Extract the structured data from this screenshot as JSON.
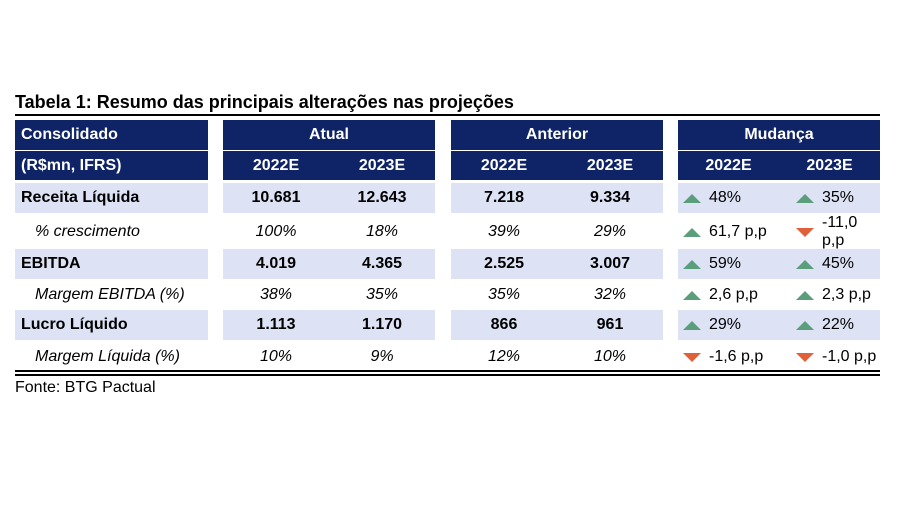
{
  "title": "Tabela 1: Resumo das principais alterações nas projeções",
  "header": {
    "row1_label": "Consolidado",
    "row2_label": "(R$mn, IFRS)",
    "groups": [
      "Atual",
      "Anterior",
      "Mudança"
    ],
    "years": [
      "2022E",
      "2023E",
      "2022E",
      "2023E",
      "2022E",
      "2023E"
    ]
  },
  "rows": [
    {
      "label": "Receita Líquida",
      "style": "bold",
      "values": [
        "10.681",
        "12.643",
        "7.218",
        "9.334"
      ],
      "changes": [
        {
          "dir": "up",
          "text": "48%"
        },
        {
          "dir": "up",
          "text": "35%"
        }
      ]
    },
    {
      "label": "% crescimento",
      "style": "italic",
      "values": [
        "100%",
        "18%",
        "39%",
        "29%"
      ],
      "changes": [
        {
          "dir": "up",
          "text": "61,7 p,p"
        },
        {
          "dir": "down",
          "text": "-11,0 p,p"
        }
      ]
    },
    {
      "label": "EBITDA",
      "style": "bold",
      "values": [
        "4.019",
        "4.365",
        "2.525",
        "3.007"
      ],
      "changes": [
        {
          "dir": "up",
          "text": "59%"
        },
        {
          "dir": "up",
          "text": "45%"
        }
      ]
    },
    {
      "label": "Margem EBITDA  (%)",
      "style": "italic",
      "values": [
        "38%",
        "35%",
        "35%",
        "32%"
      ],
      "changes": [
        {
          "dir": "up",
          "text": "2,6 p,p"
        },
        {
          "dir": "up",
          "text": "2,3 p,p"
        }
      ]
    },
    {
      "label": "Lucro Líquido",
      "style": "bold",
      "values": [
        "1.113",
        "1.170",
        "866",
        "961"
      ],
      "changes": [
        {
          "dir": "up",
          "text": "29%"
        },
        {
          "dir": "up",
          "text": "22%"
        }
      ]
    },
    {
      "label": "Margem Líquida (%)",
      "style": "italic",
      "values": [
        "10%",
        "9%",
        "12%",
        "10%"
      ],
      "changes": [
        {
          "dir": "down",
          "text": "-1,6 p,p"
        },
        {
          "dir": "down",
          "text": "-1,0 p,p"
        }
      ]
    }
  ],
  "source": "Fonte: BTG Pactual",
  "colors": {
    "header_bg": "#0f2466",
    "shade": "#dde3f5",
    "up": "#5a9e7c",
    "down": "#e0603a"
  }
}
